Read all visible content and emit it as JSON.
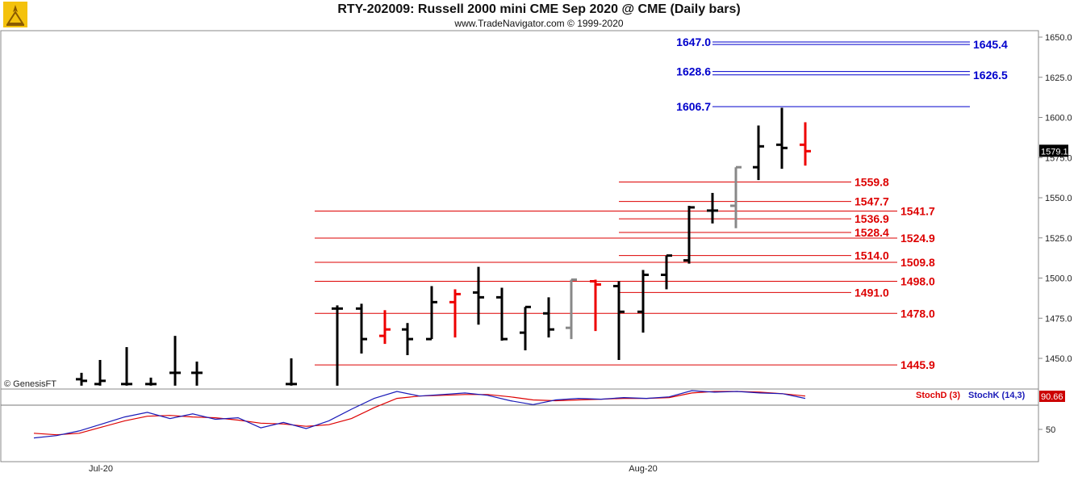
{
  "header": {
    "title": "RTY-202009:  Russell 2000 mini CME Sep 2020 @ CME  (Daily bars)",
    "subtitle": "www.TradeNavigator.com © 1999-2020",
    "copyright": "© GenesisFT"
  },
  "colors": {
    "up_bar": "#000000",
    "down_bar": "#ee0000",
    "neutral_bar": "#888888",
    "support_line": "#dd0000",
    "resistance_line": "#0000cc",
    "stoch_d": "#dd0000",
    "stoch_k": "#1a1ab8"
  },
  "chart_data": {
    "type": "ohlc",
    "instrument": "RTY-202009",
    "y_axis": {
      "ticks": [
        "1650.0",
        "1625.0",
        "1600.0",
        "1575.0",
        "1550.0",
        "1525.0",
        "1500.0",
        "1475.0",
        "1450.0"
      ],
      "range": [
        1433,
        1655
      ],
      "last_price": "1579.1"
    },
    "x_axis": {
      "labels": [
        "Jul-20",
        "Aug-20"
      ]
    },
    "bars": [
      {
        "o": 1437,
        "h": 1441,
        "l": 1433,
        "c": 1436,
        "color": "black"
      },
      {
        "o": 1434,
        "h": 1449,
        "l": 1433,
        "c": 1436,
        "color": "black"
      },
      {
        "o": 1434,
        "h": 1457,
        "l": 1433,
        "c": 1434,
        "color": "black"
      },
      {
        "o": 1434,
        "h": 1438,
        "l": 1433,
        "c": 1434,
        "color": "black"
      },
      {
        "o": 1441,
        "h": 1464,
        "l": 1433,
        "c": 1441,
        "color": "black"
      },
      {
        "o": 1441,
        "h": 1448,
        "l": 1433,
        "c": 1441,
        "color": "black"
      },
      {
        "o": 1434,
        "h": 1450,
        "l": 1433,
        "c": 1434,
        "color": "black"
      },
      {
        "o": 1481,
        "h": 1483,
        "l": 1433,
        "c": 1481,
        "color": "black"
      },
      {
        "o": 1481,
        "h": 1484,
        "l": 1453,
        "c": 1462,
        "color": "black"
      },
      {
        "o": 1464,
        "h": 1480,
        "l": 1459,
        "c": 1468,
        "color": "red"
      },
      {
        "o": 1468,
        "h": 1472,
        "l": 1452,
        "c": 1462,
        "color": "black"
      },
      {
        "o": 1462,
        "h": 1495,
        "l": 1462,
        "c": 1485,
        "color": "black"
      },
      {
        "o": 1485,
        "h": 1493,
        "l": 1463,
        "c": 1490,
        "color": "red"
      },
      {
        "o": 1491,
        "h": 1507,
        "l": 1471,
        "c": 1488,
        "color": "black"
      },
      {
        "o": 1488,
        "h": 1494,
        "l": 1461,
        "c": 1462,
        "color": "black"
      },
      {
        "o": 1466,
        "h": 1482,
        "l": 1455,
        "c": 1482,
        "color": "black"
      },
      {
        "o": 1478,
        "h": 1488,
        "l": 1463,
        "c": 1468,
        "color": "black"
      },
      {
        "o": 1469,
        "h": 1499,
        "l": 1462,
        "c": 1499,
        "color": "gray"
      },
      {
        "o": 1498,
        "h": 1499,
        "l": 1467,
        "c": 1496,
        "color": "red"
      },
      {
        "o": 1495,
        "h": 1498,
        "l": 1449,
        "c": 1479,
        "color": "black"
      },
      {
        "o": 1479,
        "h": 1505,
        "l": 1466,
        "c": 1502,
        "color": "black"
      },
      {
        "o": 1502,
        "h": 1514,
        "l": 1493,
        "c": 1514,
        "color": "black"
      },
      {
        "o": 1511,
        "h": 1545,
        "l": 1509,
        "c": 1544,
        "color": "black"
      },
      {
        "o": 1542,
        "h": 1553,
        "l": 1534,
        "c": 1542,
        "color": "black"
      },
      {
        "o": 1545,
        "h": 1569,
        "l": 1531,
        "c": 1569,
        "color": "gray"
      },
      {
        "o": 1569,
        "h": 1595,
        "l": 1561,
        "c": 1582,
        "color": "black"
      },
      {
        "o": 1583,
        "h": 1606,
        "l": 1568,
        "c": 1581,
        "color": "black"
      },
      {
        "o": 1583,
        "h": 1597,
        "l": 1570,
        "c": 1579,
        "color": "red"
      }
    ],
    "levels": [
      {
        "value": 1647.0,
        "label": "1647.0",
        "color": "blue"
      },
      {
        "value": 1645.4,
        "label": "1645.4",
        "color": "blue"
      },
      {
        "value": 1628.6,
        "label": "1628.6",
        "color": "blue"
      },
      {
        "value": 1626.5,
        "label": "1626.5",
        "color": "blue"
      },
      {
        "value": 1606.7,
        "label": "1606.7",
        "color": "blue"
      },
      {
        "value": 1559.8,
        "label": "1559.8",
        "color": "red"
      },
      {
        "value": 1547.7,
        "label": "1547.7",
        "color": "red"
      },
      {
        "value": 1541.7,
        "label": "1541.7",
        "color": "red"
      },
      {
        "value": 1536.9,
        "label": "1536.9",
        "color": "red"
      },
      {
        "value": 1528.4,
        "label": "1528.4",
        "color": "red"
      },
      {
        "value": 1524.9,
        "label": "1524.9",
        "color": "red"
      },
      {
        "value": 1514.0,
        "label": "1514.0",
        "color": "red"
      },
      {
        "value": 1509.8,
        "label": "1509.8",
        "color": "red"
      },
      {
        "value": 1498.0,
        "label": "1498.0",
        "color": "red"
      },
      {
        "value": 1491.0,
        "label": "1491.0",
        "color": "red"
      },
      {
        "value": 1478.0,
        "label": "1478.0",
        "color": "red"
      },
      {
        "value": 1445.9,
        "label": "1445.9",
        "color": "red"
      }
    ],
    "stochastic": {
      "legend_d": "StochD (3)",
      "legend_k": "StochK (14,3)",
      "last_value": "90.66",
      "y_tick": "50",
      "range": [
        20,
        100
      ],
      "k_values": [
        39,
        42,
        48,
        57,
        66,
        72,
        64,
        70,
        63,
        65,
        52,
        59,
        51,
        61,
        76,
        90,
        99,
        93,
        95,
        97,
        94,
        87,
        82,
        88,
        90,
        89,
        91,
        90,
        92,
        100,
        98,
        99,
        97,
        96,
        90
      ],
      "d_values": [
        45,
        43,
        45,
        53,
        61,
        67,
        68,
        66,
        65,
        62,
        58,
        57,
        54,
        56,
        64,
        78,
        90,
        93,
        94,
        95,
        95,
        92,
        88,
        87,
        88,
        89,
        90,
        90,
        91,
        97,
        99,
        99,
        98,
        96,
        93
      ]
    }
  }
}
